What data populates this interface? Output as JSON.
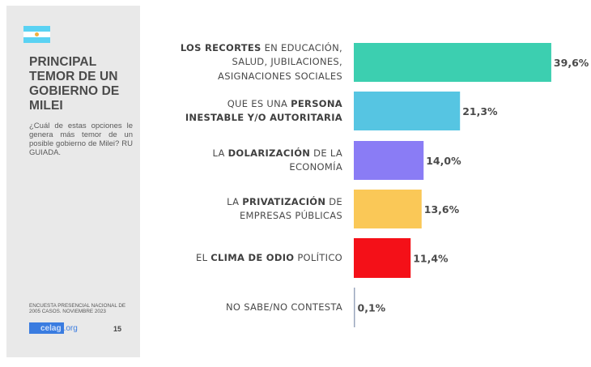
{
  "sidebar": {
    "flag_icon": "argentina-flag-icon",
    "title": "PRINCIPAL TEMOR DE UN GOBIERNO DE MILEI",
    "question": "¿Cuál de estas opciones le genera más temor de un posible gobierno de Milei? RU GUIADA.",
    "source": "ENCUESTA PRESENCIAL NACIONAL DE 2005 CASOS. NOVIEMBRE 2023",
    "logo_main": "celag",
    "logo_suffix": ".org",
    "page_number": "15"
  },
  "chart_data": {
    "type": "bar",
    "orientation": "horizontal",
    "title": "PRINCIPAL TEMOR DE UN GOBIERNO DE MILEI",
    "xlabel": "",
    "ylabel": "",
    "xlim": [
      0,
      40
    ],
    "grid": false,
    "categories": [
      "LOS RECORTES EN EDUCACIÓN, SALUD, JUBILACIONES, ASIGNACIONES SOCIALES",
      "QUE ES UNA PERSONA INESTABLE Y/O AUTORITARIA",
      "LA DOLARIZACIÓN DE LA ECONOMÍA",
      "LA PRIVATIZACIÓN DE EMPRESAS PÚBLICAS",
      "EL CLIMA DE ODIO POLÍTICO",
      "NO SABE/NO CONTESTA"
    ],
    "label_lines": [
      [
        [
          {
            "t": "LOS RECORTES",
            "b": true
          },
          {
            "t": " EN EDUCACIÓN,",
            "b": false
          }
        ],
        [
          {
            "t": "SALUD, JUBILACIONES,",
            "b": false
          }
        ],
        [
          {
            "t": "ASIGNACIONES SOCIALES",
            "b": false
          }
        ]
      ],
      [
        [
          {
            "t": "QUE ES UNA ",
            "b": false
          },
          {
            "t": "PERSONA",
            "b": true
          }
        ],
        [
          {
            "t": "INESTABLE Y/O AUTORITARIA",
            "b": true
          }
        ]
      ],
      [
        [
          {
            "t": "LA ",
            "b": false
          },
          {
            "t": "DOLARIZACIÓN",
            "b": true
          },
          {
            "t": " DE LA",
            "b": false
          }
        ],
        [
          {
            "t": "ECONOMÍA",
            "b": false
          }
        ]
      ],
      [
        [
          {
            "t": "LA ",
            "b": false
          },
          {
            "t": "PRIVATIZACIÓN",
            "b": true
          },
          {
            "t": " DE",
            "b": false
          }
        ],
        [
          {
            "t": "EMPRESAS PÚBLICAS",
            "b": false
          }
        ]
      ],
      [
        [
          {
            "t": "EL ",
            "b": false
          },
          {
            "t": "CLIMA DE ODIO",
            "b": true
          },
          {
            "t": " POLÍTICO",
            "b": false
          }
        ]
      ],
      [
        [
          {
            "t": "NO SABE/NO CONTESTA",
            "b": false
          }
        ]
      ]
    ],
    "values": [
      39.6,
      21.3,
      14.0,
      13.6,
      11.4,
      0.1
    ],
    "value_labels": [
      "39,6%",
      "21,3%",
      "14,0%",
      "13,6%",
      "11,4%",
      "0,1%"
    ],
    "colors": [
      "#3ccfb0",
      "#56c5e2",
      "#8a7cf5",
      "#fac857",
      "#f41018",
      "#9aa6bd"
    ],
    "label_color": "#4a4a4a"
  }
}
